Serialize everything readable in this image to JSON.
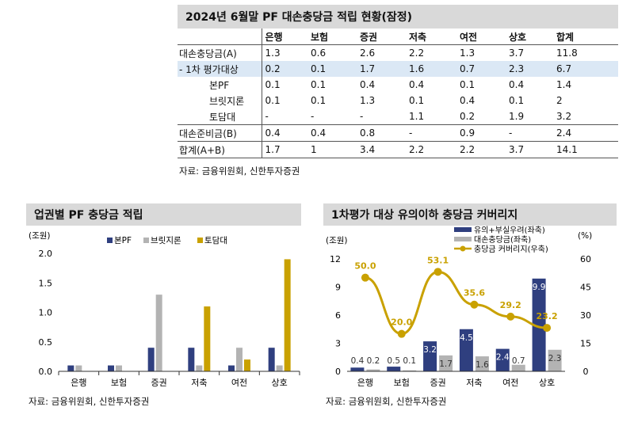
{
  "table": {
    "title": "2024년 6월말 PF 대손충당금 적립 현황(잠정)",
    "headers": [
      "",
      "은행",
      "보험",
      "증권",
      "저축",
      "여전",
      "상호",
      "합계"
    ],
    "rows": [
      {
        "label": "대손충당금(A)",
        "cells": [
          "1.3",
          "0.6",
          "2.6",
          "2.2",
          "1.3",
          "3.7",
          "11.8"
        ]
      },
      {
        "label": "- 1차 평가대상",
        "cells": [
          "0.2",
          "0.1",
          "1.7",
          "1.6",
          "0.7",
          "2.3",
          "6.7"
        ]
      },
      {
        "label": "본PF",
        "cells": [
          "0.1",
          "0.1",
          "0.4",
          "0.4",
          "0.1",
          "0.4",
          "1.4"
        ]
      },
      {
        "label": "브릿지론",
        "cells": [
          "0.1",
          "0.1",
          "1.3",
          "0.1",
          "0.4",
          "0.1",
          "2"
        ]
      },
      {
        "label": "토담대",
        "cells": [
          "-",
          "-",
          "-",
          "1.1",
          "0.2",
          "1.9",
          "3.2"
        ]
      },
      {
        "label": "대손준비금(B)",
        "cells": [
          "0.4",
          "0.4",
          "0.8",
          "-",
          "0.9",
          "-",
          "2.4"
        ]
      },
      {
        "label": "합계(A+B)",
        "cells": [
          "1.7",
          "1",
          "3.4",
          "2.2",
          "2.2",
          "3.7",
          "14.1"
        ]
      }
    ],
    "source": "자료: 금융위원회, 신한투자증권"
  },
  "chart1": {
    "title": "업권별 PF 충당금 적립",
    "source": "자료: 금융위원회, 신한투자증권"
  },
  "chart2": {
    "title": "1차평가 대상 유의이하 충당금 커버리지",
    "source": "자료: 금융위원회, 신한투자증권"
  },
  "chart_data": [
    {
      "type": "bar",
      "title": "업권별 PF 충당금 적립",
      "ylabel": "(조원)",
      "categories": [
        "은행",
        "보험",
        "증권",
        "저축",
        "여전",
        "상호"
      ],
      "ylim": [
        0,
        2.0
      ],
      "yticks": [
        "0.0",
        "0.5",
        "1.0",
        "1.5",
        "2.0"
      ],
      "legend_position": "top",
      "series": [
        {
          "name": "본PF",
          "color": "#2f3f7f",
          "values": [
            0.1,
            0.1,
            0.4,
            0.4,
            0.1,
            0.4
          ]
        },
        {
          "name": "브릿지론",
          "color": "#b3b3b3",
          "values": [
            0.1,
            0.1,
            1.3,
            0.1,
            0.4,
            0.1
          ]
        },
        {
          "name": "토담대",
          "color": "#c9a100",
          "values": [
            0,
            0,
            0,
            1.1,
            0.2,
            1.9
          ]
        }
      ]
    },
    {
      "type": "bar",
      "title": "1차평가 대상 유의이하 충당금 커버리지",
      "ylabel": "(조원)",
      "y2label": "(%)",
      "categories": [
        "은행",
        "보험",
        "증권",
        "저축",
        "여전",
        "상호"
      ],
      "ylim": [
        0,
        12
      ],
      "y2lim": [
        0,
        60
      ],
      "yticks": [
        "0",
        "3",
        "6",
        "9",
        "12"
      ],
      "y2ticks": [
        "0",
        "15",
        "30",
        "45",
        "60"
      ],
      "legend_position": "top-right",
      "series": [
        {
          "name": "유의+부실우려(좌축)",
          "color": "#2f3f7f",
          "values": [
            0.4,
            0.5,
            3.2,
            4.5,
            2.4,
            9.9
          ],
          "labels": [
            "0.4",
            "0.5",
            "3.2",
            "4.5",
            "2.4",
            "9.9"
          ]
        },
        {
          "name": "대손충당금(좌축)",
          "color": "#b3b3b3",
          "values": [
            0.2,
            0.1,
            1.7,
            1.6,
            0.7,
            2.3
          ],
          "labels": [
            "0.2",
            "0.1",
            "1.7",
            "1.6",
            "0.7",
            "2.3"
          ]
        },
        {
          "name": "충당금 커버리지(우축)",
          "color": "#c9a100",
          "type": "line",
          "axis": "right",
          "values": [
            50.0,
            20.0,
            53.1,
            35.6,
            29.2,
            23.2
          ],
          "labels": [
            "50.0",
            "20.0",
            "53.1",
            "35.6",
            "29.2",
            "23.2"
          ]
        }
      ]
    }
  ]
}
